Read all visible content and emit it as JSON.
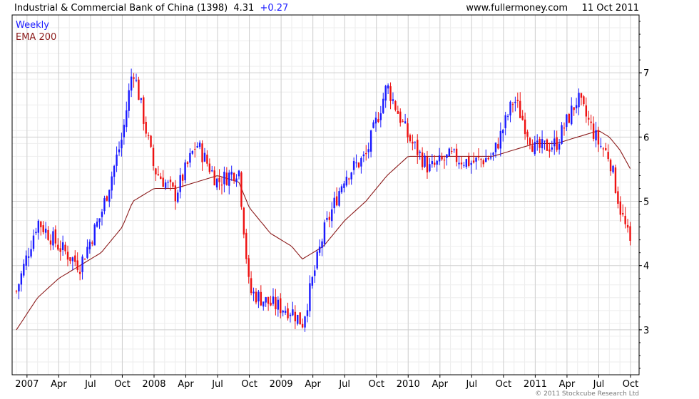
{
  "header": {
    "title_name": "Industrial & Commercial Bank of China (1398)",
    "last_price": "4.31",
    "change": "+0.27",
    "source": "www.fullermoney.com",
    "date": "11 Oct 2011"
  },
  "legend": {
    "frequency": "Weekly",
    "ema_label": "EMA 200"
  },
  "footer": {
    "copyright": "© 2011 Stockcube Research Ltd"
  },
  "colors": {
    "up": "#1a1aff",
    "down": "#ee1111",
    "ema": "#8b1a1a",
    "grid": "#d8d8d8",
    "axis": "#000000",
    "header_change": "#1a1aff"
  },
  "chart_data": {
    "type": "line",
    "chart_style": "candlestick",
    "frequency": "Weekly",
    "x": [
      "2006-12",
      "2007-02",
      "2007-04",
      "2007-06",
      "2007-08",
      "2007-10",
      "2007-11",
      "2008-01",
      "2008-03",
      "2008-05",
      "2008-07",
      "2008-09",
      "2008-10",
      "2008-12",
      "2009-02",
      "2009-03",
      "2009-05",
      "2009-07",
      "2009-09",
      "2009-11",
      "2010-01",
      "2010-03",
      "2010-05",
      "2010-07",
      "2010-09",
      "2010-11",
      "2011-01",
      "2011-03",
      "2011-05",
      "2011-07",
      "2011-08",
      "2011-09",
      "2011-10"
    ],
    "series": [
      {
        "name": "Weekly",
        "values": [
          3.6,
          4.7,
          4.3,
          4.0,
          4.8,
          6.0,
          7.1,
          5.5,
          5.1,
          5.9,
          5.3,
          5.5,
          3.6,
          3.4,
          3.3,
          3.1,
          4.5,
          5.4,
          5.7,
          6.8,
          6.0,
          5.5,
          5.7,
          5.6,
          5.7,
          6.6,
          5.8,
          5.9,
          6.6,
          5.9,
          5.7,
          4.9,
          4.31
        ]
      },
      {
        "name": "EMA 200",
        "values": [
          3.0,
          3.5,
          3.8,
          4.0,
          4.2,
          4.6,
          5.0,
          5.2,
          5.2,
          5.3,
          5.4,
          5.3,
          4.9,
          4.5,
          4.3,
          4.1,
          4.3,
          4.7,
          5.0,
          5.4,
          5.7,
          5.7,
          5.7,
          5.7,
          5.7,
          5.8,
          5.9,
          5.9,
          6.0,
          6.1,
          6.0,
          5.8,
          5.5
        ]
      }
    ],
    "xlabel": "",
    "ylabel": "",
    "ylim": [
      2.3,
      7.9
    ],
    "y_ticks": [
      "3",
      "4",
      "5",
      "6",
      "7"
    ],
    "x_ticks": [
      {
        "label": "2007",
        "x": "2007-01"
      },
      {
        "label": "Apr",
        "x": "2007-04"
      },
      {
        "label": "Jul",
        "x": "2007-07"
      },
      {
        "label": "Oct",
        "x": "2007-10"
      },
      {
        "label": "2008",
        "x": "2008-01"
      },
      {
        "label": "Apr",
        "x": "2008-04"
      },
      {
        "label": "Jul",
        "x": "2008-07"
      },
      {
        "label": "Oct",
        "x": "2008-10"
      },
      {
        "label": "2009",
        "x": "2009-01"
      },
      {
        "label": "Apr",
        "x": "2009-04"
      },
      {
        "label": "Jul",
        "x": "2009-07"
      },
      {
        "label": "Oct",
        "x": "2009-10"
      },
      {
        "label": "2010",
        "x": "2010-01"
      },
      {
        "label": "Apr",
        "x": "2010-04"
      },
      {
        "label": "Jul",
        "x": "2010-07"
      },
      {
        "label": "Oct",
        "x": "2010-10"
      },
      {
        "label": "2011",
        "x": "2011-01"
      },
      {
        "label": "Apr",
        "x": "2011-04"
      },
      {
        "label": "Jul",
        "x": "2011-07"
      },
      {
        "label": "Oct",
        "x": "2011-10"
      }
    ],
    "x_range": [
      "2006-12",
      "2011-10"
    ],
    "grid": true,
    "legend_position": "top-left",
    "y_axis_side": "right"
  }
}
